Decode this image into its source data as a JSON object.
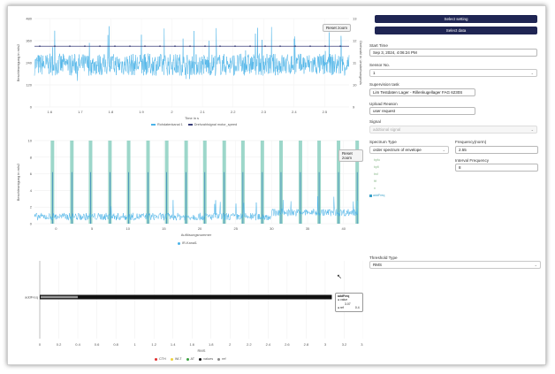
{
  "charts": {
    "top": {
      "reset_label": "Reset zoom",
      "xlabel": "Time in s",
      "ylabel": "Beschleunigung in m/s2",
      "y2label": "Drehzahl in Umdrehungen/s",
      "x_ticks": [
        "1.6",
        "1.7",
        "1.8",
        "1.9",
        "2",
        "2.1",
        "2.2",
        "2.3",
        "2.4",
        "2.5"
      ],
      "y_ticks": [
        "0",
        "120",
        "240",
        "360",
        "480"
      ],
      "y2_ticks": [
        "9",
        "10",
        "11",
        "12",
        "13"
      ],
      "legend": [
        {
          "label": "Rohdatenkanal 1",
          "color": "#4ab3e8"
        },
        {
          "label": "Drehzahlsignal motor_speed",
          "color": "#3a3f7a"
        }
      ]
    },
    "middle": {
      "reset_label": "Reset zoom",
      "xlabel": "Auflösungsnummer",
      "ylabel": "Beschleunigung in m/s2",
      "x_ticks": [
        "0",
        "5",
        "10",
        "15",
        "20",
        "25",
        "30",
        "35",
        "40"
      ],
      "y_ticks": [
        "0",
        "2",
        "4",
        "6",
        "8",
        "10"
      ],
      "legend": [
        {
          "label": "IR-Kanal1",
          "color": "#4ab3e8"
        }
      ]
    },
    "bottom": {
      "category": "addFreq",
      "xlabel": "RMS",
      "x_ticks": [
        "0",
        "0.2",
        "0.4",
        "0.6",
        "0.8",
        "1",
        "1.2",
        "1.4",
        "1.6",
        "1.8",
        "2",
        "2.2",
        "2.4",
        "2.6",
        "2.8",
        "3",
        "3.2",
        "3.4"
      ],
      "tooltip_title": "addFreq",
      "tooltip_rows": [
        {
          "label": "value",
          "value": "3.07"
        },
        {
          "label": "ref",
          "value": "0.4"
        }
      ],
      "legend": [
        {
          "label": "CTH",
          "color": "#e03030"
        },
        {
          "label": "WLT",
          "color": "#f0d23a"
        },
        {
          "label": "AT",
          "color": "#3aa040"
        },
        {
          "label": "values",
          "color": "#111111"
        },
        {
          "label": "ref",
          "color": "#888888"
        }
      ]
    }
  },
  "chart_data": [
    {
      "type": "line",
      "title": "",
      "xlabel": "Time in s",
      "ylabel": "Beschleunigung in m/s2",
      "xlim": [
        1.55,
        2.58
      ],
      "ylim": [
        0,
        480
      ],
      "y2lim": [
        9,
        13
      ],
      "series": [
        {
          "name": "Rohdatenkanal 1",
          "baseline": 230,
          "amplitude": 60
        },
        {
          "name": "Drehzahlsignal motor_speed",
          "axis": "right",
          "values": [
            11.75
          ]
        }
      ]
    },
    {
      "type": "bar",
      "title": "",
      "xlabel": "Auflösungsnummer",
      "ylabel": "Beschleunigung in m/s2",
      "xlim": [
        -3,
        42
      ],
      "ylim": [
        0,
        10
      ],
      "series": [
        {
          "name": "IR-Kanal1",
          "peaks_x": [
            -0.5,
            2.2,
            4.8,
            7.5,
            10.1,
            12.8,
            15.4,
            18.1,
            20.7,
            23.4,
            26.0,
            28.7,
            31.3,
            34.0,
            36.6,
            39.3,
            41.9
          ],
          "peak_value": 10
        }
      ]
    },
    {
      "type": "bar",
      "orientation": "horizontal",
      "title": "",
      "categories": [
        "addFreq"
      ],
      "xlabel": "RMS",
      "xlim": [
        0,
        3.4
      ],
      "series": [
        {
          "name": "values",
          "values": [
            3.07
          ]
        },
        {
          "name": "ref",
          "values": [
            0.4
          ]
        }
      ]
    }
  ],
  "panel": {
    "select_setting": "Select setting",
    "select_data": "Select data",
    "start_time_label": "Start Time",
    "start_time_value": "Sep 3, 2024, 4:06:24 PM",
    "sensor_label": "Sensor No.",
    "sensor_value": "1",
    "supervision_label": "Supervision task",
    "supervision_value": "Lim Testdaten Lager - Rillenkugellager FAG 6230S",
    "upload_label": "Upload Reason",
    "upload_value": "user request",
    "signal_label": "Signal",
    "signal_value": "addtional signal",
    "spectrum_label": "Spectrum Type",
    "spectrum_value": "order spectrum of envelope",
    "frequency_label": "Frequency(norm)",
    "frequency_value": "2.55",
    "interval_label": "Interval Frequency",
    "interval_value": "8",
    "options": [
      "bpfo",
      "bpfi",
      "bsf",
      "ftf",
      "n",
      "addFreq"
    ],
    "threshold_label": "Threshold Type",
    "threshold_value": "RMS"
  }
}
